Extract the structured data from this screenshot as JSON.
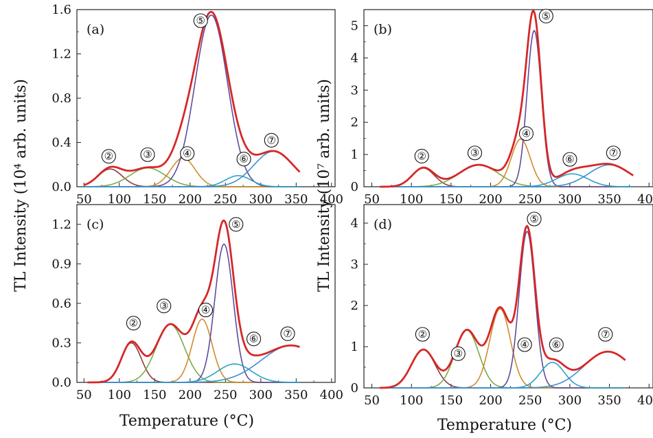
{
  "figure": {
    "y_axis_label": "TL Intensity",
    "x_axis_label": "Temperature (°C)"
  },
  "colors": {
    "total": "#d62728",
    "p2": "#8c3b3b",
    "p3": "#7aab4a",
    "p4": "#d08a2c",
    "p5": "#5e4b9a",
    "p6": "#2aa0c8",
    "p7": "#3b8fd0"
  },
  "chart_data": [
    {
      "type": "line",
      "panel_label": "(a)",
      "ylabel_unit": "(10⁴ arb. units)",
      "xlim": [
        40,
        405
      ],
      "ylim": [
        0,
        1.6
      ],
      "xticks": [
        "50",
        "100",
        "150",
        "200",
        "250",
        "300",
        "350",
        "400"
      ],
      "yticks": [
        "0.0",
        "0.4",
        "0.8",
        "1.2",
        "1.6"
      ],
      "x_range": [
        50,
        355
      ],
      "peaks": [
        {
          "name": "2",
          "center": 87,
          "amplitude": 0.16,
          "width": 17,
          "color_key": "p2"
        },
        {
          "name": "3",
          "center": 140,
          "amplitude": 0.17,
          "width": 25,
          "color_key": "p3"
        },
        {
          "name": "4",
          "center": 190,
          "amplitude": 0.26,
          "width": 17,
          "color_key": "p4"
        },
        {
          "name": "5",
          "center": 230,
          "amplitude": 1.55,
          "width": 23,
          "color_key": "p5"
        },
        {
          "name": "6",
          "center": 268,
          "amplitude": 0.1,
          "width": 18,
          "color_key": "p6"
        },
        {
          "name": "7",
          "center": 318,
          "amplitude": 0.32,
          "width": 28,
          "color_key": "p7"
        }
      ],
      "annotations": [
        {
          "text": "②",
          "x": 85,
          "y": 0.275
        },
        {
          "text": "③",
          "x": 140,
          "y": 0.29
        },
        {
          "text": "④",
          "x": 196,
          "y": 0.3
        },
        {
          "text": "⑤",
          "x": 215,
          "y": 1.5
        },
        {
          "text": "⑥",
          "x": 276,
          "y": 0.25
        },
        {
          "text": "⑦",
          "x": 315,
          "y": 0.42
        }
      ]
    },
    {
      "type": "line",
      "panel_label": "(b)",
      "ylabel_unit": "(10⁷ arb. units)",
      "xlim": [
        40,
        405
      ],
      "ylim": [
        0,
        5.5
      ],
      "xticks": [
        "50",
        "100",
        "150",
        "200",
        "250",
        "300",
        "350",
        "400"
      ],
      "yticks": [
        "0",
        "1",
        "2",
        "3",
        "4",
        "5"
      ],
      "x_range": [
        60,
        380
      ],
      "peaks": [
        {
          "name": "2",
          "center": 115,
          "amplitude": 0.58,
          "width": 14,
          "color_key": "p2"
        },
        {
          "name": "3",
          "center": 185,
          "amplitude": 0.68,
          "width": 25,
          "color_key": "p3"
        },
        {
          "name": "4",
          "center": 238,
          "amplitude": 1.48,
          "width": 12,
          "color_key": "p4"
        },
        {
          "name": "5",
          "center": 255,
          "amplitude": 4.85,
          "width": 9,
          "color_key": "p5"
        },
        {
          "name": "6",
          "center": 303,
          "amplitude": 0.4,
          "width": 20,
          "color_key": "p6"
        },
        {
          "name": "7",
          "center": 350,
          "amplitude": 0.68,
          "width": 26,
          "color_key": "p7"
        }
      ],
      "annotations": [
        {
          "text": "②",
          "x": 113,
          "y": 0.95
        },
        {
          "text": "③",
          "x": 180,
          "y": 1.05
        },
        {
          "text": "④",
          "x": 245,
          "y": 1.65
        },
        {
          "text": "⑤",
          "x": 270,
          "y": 5.3
        },
        {
          "text": "⑥",
          "x": 300,
          "y": 0.85
        },
        {
          "text": "⑦",
          "x": 355,
          "y": 1.05
        }
      ]
    },
    {
      "type": "line",
      "panel_label": "(c)",
      "ylabel_unit": "",
      "xlim": [
        40,
        405
      ],
      "ylim": [
        0,
        1.35
      ],
      "xticks": [
        "50",
        "100",
        "150",
        "200",
        "250",
        "300",
        "350",
        "400"
      ],
      "yticks": [
        "0.0",
        "0.3",
        "0.6",
        "0.9",
        "1.2"
      ],
      "x_range": [
        55,
        355
      ],
      "peaks": [
        {
          "name": "2",
          "center": 117,
          "amplitude": 0.3,
          "width": 14,
          "color_key": "p2"
        },
        {
          "name": "3",
          "center": 172,
          "amplitude": 0.44,
          "width": 20,
          "color_key": "p3"
        },
        {
          "name": "4",
          "center": 217,
          "amplitude": 0.48,
          "width": 14,
          "color_key": "p4"
        },
        {
          "name": "5",
          "center": 248,
          "amplitude": 1.05,
          "width": 13,
          "color_key": "p5"
        },
        {
          "name": "6",
          "center": 263,
          "amplitude": 0.14,
          "width": 24,
          "color_key": "p6"
        },
        {
          "name": "7",
          "center": 343,
          "amplitude": 0.28,
          "width": 42,
          "color_key": "p7"
        }
      ],
      "annotations": [
        {
          "text": "②",
          "x": 120,
          "y": 0.45
        },
        {
          "text": "③",
          "x": 163,
          "y": 0.58
        },
        {
          "text": "④",
          "x": 222,
          "y": 0.55
        },
        {
          "text": "⑤",
          "x": 265,
          "y": 1.2
        },
        {
          "text": "⑥",
          "x": 290,
          "y": 0.33
        },
        {
          "text": "⑦",
          "x": 338,
          "y": 0.37
        }
      ]
    },
    {
      "type": "line",
      "panel_label": "(d)",
      "ylabel_unit": "",
      "xlim": [
        40,
        405
      ],
      "ylim": [
        0,
        4.45
      ],
      "xticks": [
        "50",
        "100",
        "150",
        "200",
        "250",
        "300",
        "350",
        "400"
      ],
      "yticks": [
        "0",
        "1",
        "2",
        "3",
        "4"
      ],
      "x_range": [
        60,
        370
      ],
      "peaks": [
        {
          "name": "2",
          "center": 115,
          "amplitude": 0.93,
          "width": 15,
          "color_key": "p2"
        },
        {
          "name": "3",
          "center": 170,
          "amplitude": 1.4,
          "width": 15,
          "color_key": "p3"
        },
        {
          "name": "4",
          "center": 212,
          "amplitude": 1.92,
          "width": 13,
          "color_key": "p4"
        },
        {
          "name": "5",
          "center": 246,
          "amplitude": 3.8,
          "width": 10,
          "color_key": "p5"
        },
        {
          "name": "6",
          "center": 278,
          "amplitude": 0.62,
          "width": 15,
          "color_key": "p6"
        },
        {
          "name": "7",
          "center": 348,
          "amplitude": 0.88,
          "width": 30,
          "color_key": "p7"
        }
      ],
      "annotations": [
        {
          "text": "②",
          "x": 114,
          "y": 1.3
        },
        {
          "text": "③",
          "x": 159,
          "y": 0.83
        },
        {
          "text": "④",
          "x": 243,
          "y": 1.05
        },
        {
          "text": "⑤",
          "x": 255,
          "y": 4.1
        },
        {
          "text": "⑥",
          "x": 283,
          "y": 1.05
        },
        {
          "text": "⑦",
          "x": 345,
          "y": 1.3
        }
      ]
    }
  ]
}
